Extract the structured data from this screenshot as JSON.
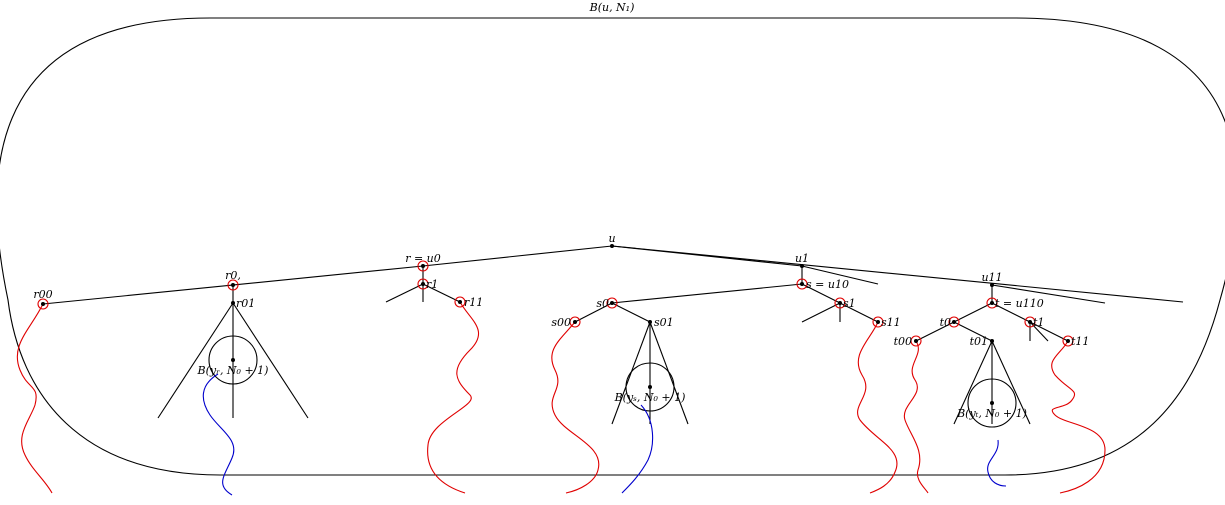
{
  "colors": {
    "ink": "#000000",
    "highlight": "#e00000",
    "path": "#0000cc"
  },
  "labels": {
    "outer_ball": "B(u, N₁)",
    "u": "u",
    "r_eq": "r = u0",
    "u1": "u1",
    "u11": "u11",
    "r0": "r0,",
    "r1": "r1",
    "r00": "r00",
    "r01": "r01",
    "r11": "r11",
    "s_eq": "s = u10",
    "s0": "s0",
    "s1": "s1",
    "s00": "s00",
    "s01": "s01",
    "s11": "s11",
    "t_eq": "t = u110",
    "t0": "t0",
    "t1": "t1",
    "t00": "t00",
    "t01": "t01",
    "t11": "t11",
    "ball_r": "B(yᵣ, N₀ + 1)",
    "ball_s": "B(yₛ, N₀ + 1)",
    "ball_t": "B(yₜ, N₀ + 1)"
  }
}
